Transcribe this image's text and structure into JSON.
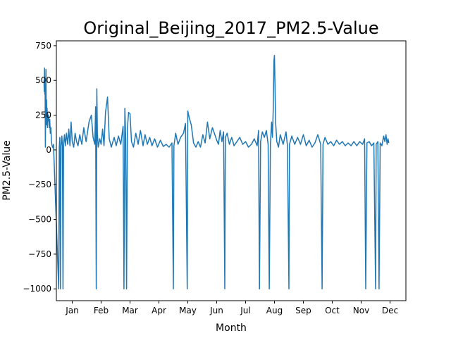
{
  "chart_data": {
    "type": "line",
    "title": "Original_Beijing_2017_PM2.5-Value",
    "xlabel": "Month",
    "ylabel": "PM2.5-Value",
    "xlim": [
      -0.55,
      11.55
    ],
    "ylim": [
      -1085,
      785
    ],
    "grid": false,
    "line_color": "#1f77b4",
    "x_ticks": [
      {
        "value": 0,
        "label": "Jan"
      },
      {
        "value": 1,
        "label": "Feb"
      },
      {
        "value": 2,
        "label": "Mar"
      },
      {
        "value": 3,
        "label": "Apr"
      },
      {
        "value": 4,
        "label": "May"
      },
      {
        "value": 5,
        "label": "Jun"
      },
      {
        "value": 6,
        "label": "Jul"
      },
      {
        "value": 7,
        "label": "Aug"
      },
      {
        "value": 8,
        "label": "Sep"
      },
      {
        "value": 9,
        "label": "Oct"
      },
      {
        "value": 10,
        "label": "Nov"
      },
      {
        "value": 11,
        "label": "Dec"
      }
    ],
    "y_ticks": [
      {
        "value": 750,
        "label": "750"
      },
      {
        "value": 500,
        "label": "500"
      },
      {
        "value": 250,
        "label": "250"
      },
      {
        "value": 0,
        "label": "0"
      },
      {
        "value": -250,
        "label": "−250"
      },
      {
        "value": -500,
        "label": "−500"
      },
      {
        "value": -750,
        "label": "−750"
      },
      {
        "value": -1000,
        "label": "−1000"
      }
    ],
    "series": [
      {
        "values": [
          [
            -0.98,
            500
          ],
          [
            -0.97,
            420
          ],
          [
            -0.96,
            590
          ],
          [
            -0.95,
            400
          ],
          [
            -0.94,
            460
          ],
          [
            -0.93,
            20
          ],
          [
            -0.92,
            350
          ],
          [
            -0.91,
            580
          ],
          [
            -0.9,
            180
          ],
          [
            -0.89,
            360
          ],
          [
            -0.88,
            220
          ],
          [
            -0.87,
            300
          ],
          [
            -0.86,
            160
          ],
          [
            -0.85,
            260
          ],
          [
            -0.84,
            210
          ],
          [
            -0.82,
            250
          ],
          [
            -0.8,
            160
          ],
          [
            -0.78,
            220
          ],
          [
            -0.76,
            120
          ],
          [
            -0.74,
            160
          ],
          [
            -0.72,
            60
          ],
          [
            -0.7,
            30
          ],
          [
            -0.67,
            15
          ],
          [
            -0.65,
            40
          ],
          [
            -0.47,
            -1000
          ],
          [
            -0.45,
            20
          ],
          [
            -0.43,
            90
          ],
          [
            -0.41,
            -1000
          ],
          [
            -0.39,
            30
          ],
          [
            -0.36,
            100
          ],
          [
            -0.34,
            25
          ],
          [
            -0.32,
            -1000
          ],
          [
            -0.3,
            40
          ],
          [
            -0.27,
            110
          ],
          [
            -0.24,
            30
          ],
          [
            -0.2,
            120
          ],
          [
            -0.16,
            40
          ],
          [
            -0.12,
            150
          ],
          [
            -0.08,
            30
          ],
          [
            -0.04,
            200
          ],
          [
            0.0,
            60
          ],
          [
            0.05,
            20
          ],
          [
            0.1,
            120
          ],
          [
            0.15,
            60
          ],
          [
            0.2,
            30
          ],
          [
            0.26,
            110
          ],
          [
            0.33,
            40
          ],
          [
            0.4,
            160
          ],
          [
            0.48,
            60
          ],
          [
            0.58,
            200
          ],
          [
            0.66,
            250
          ],
          [
            0.72,
            90
          ],
          [
            0.78,
            40
          ],
          [
            0.81,
            310
          ],
          [
            0.83,
            -1000
          ],
          [
            0.85,
            440
          ],
          [
            0.87,
            120
          ],
          [
            0.9,
            20
          ],
          [
            0.95,
            80
          ],
          [
            1.0,
            40
          ],
          [
            1.05,
            150
          ],
          [
            1.1,
            30
          ],
          [
            1.15,
            270
          ],
          [
            1.22,
            380
          ],
          [
            1.28,
            80
          ],
          [
            1.35,
            20
          ],
          [
            1.45,
            90
          ],
          [
            1.52,
            30
          ],
          [
            1.6,
            100
          ],
          [
            1.68,
            40
          ],
          [
            1.76,
            170
          ],
          [
            1.79,
            -1000
          ],
          [
            1.82,
            300
          ],
          [
            1.85,
            80
          ],
          [
            1.88,
            -1000
          ],
          [
            1.91,
            160
          ],
          [
            1.95,
            270
          ],
          [
            2.0,
            260
          ],
          [
            2.05,
            60
          ],
          [
            2.12,
            20
          ],
          [
            2.2,
            120
          ],
          [
            2.28,
            40
          ],
          [
            2.36,
            140
          ],
          [
            2.45,
            30
          ],
          [
            2.52,
            110
          ],
          [
            2.6,
            40
          ],
          [
            2.68,
            90
          ],
          [
            2.76,
            30
          ],
          [
            2.85,
            80
          ],
          [
            2.95,
            20
          ],
          [
            3.05,
            70
          ],
          [
            3.15,
            25
          ],
          [
            3.25,
            40
          ],
          [
            3.35,
            20
          ],
          [
            3.45,
            50
          ],
          [
            3.5,
            -1000
          ],
          [
            3.52,
            30
          ],
          [
            3.58,
            120
          ],
          [
            3.66,
            40
          ],
          [
            3.75,
            90
          ],
          [
            3.85,
            120
          ],
          [
            3.92,
            190
          ],
          [
            3.98,
            -1000
          ],
          [
            4.0,
            280
          ],
          [
            4.05,
            230
          ],
          [
            4.12,
            180
          ],
          [
            4.2,
            50
          ],
          [
            4.28,
            20
          ],
          [
            4.36,
            60
          ],
          [
            4.44,
            20
          ],
          [
            4.52,
            110
          ],
          [
            4.6,
            50
          ],
          [
            4.68,
            200
          ],
          [
            4.76,
            80
          ],
          [
            4.85,
            160
          ],
          [
            4.92,
            120
          ],
          [
            5.0,
            70
          ],
          [
            5.06,
            40
          ],
          [
            5.12,
            140
          ],
          [
            5.18,
            60
          ],
          [
            5.24,
            130
          ],
          [
            5.28,
            -1000
          ],
          [
            5.3,
            90
          ],
          [
            5.36,
            120
          ],
          [
            5.44,
            40
          ],
          [
            5.52,
            90
          ],
          [
            5.6,
            30
          ],
          [
            5.7,
            60
          ],
          [
            5.8,
            90
          ],
          [
            5.9,
            40
          ],
          [
            6.0,
            60
          ],
          [
            6.1,
            20
          ],
          [
            6.2,
            40
          ],
          [
            6.3,
            80
          ],
          [
            6.4,
            30
          ],
          [
            6.45,
            140
          ],
          [
            6.48,
            -1000
          ],
          [
            6.52,
            60
          ],
          [
            6.58,
            130
          ],
          [
            6.65,
            90
          ],
          [
            6.72,
            140
          ],
          [
            6.78,
            40
          ],
          [
            6.82,
            -1000
          ],
          [
            6.86,
            40
          ],
          [
            6.9,
            200
          ],
          [
            6.93,
            90
          ],
          [
            6.96,
            300
          ],
          [
            6.98,
            640
          ],
          [
            7.0,
            680
          ],
          [
            7.02,
            450
          ],
          [
            7.04,
            200
          ],
          [
            7.08,
            60
          ],
          [
            7.14,
            20
          ],
          [
            7.2,
            110
          ],
          [
            7.3,
            40
          ],
          [
            7.4,
            130
          ],
          [
            7.45,
            30
          ],
          [
            7.5,
            -1000
          ],
          [
            7.52,
            40
          ],
          [
            7.6,
            100
          ],
          [
            7.7,
            40
          ],
          [
            7.8,
            90
          ],
          [
            7.9,
            40
          ],
          [
            8.0,
            110
          ],
          [
            8.1,
            30
          ],
          [
            8.2,
            70
          ],
          [
            8.3,
            20
          ],
          [
            8.4,
            50
          ],
          [
            8.5,
            110
          ],
          [
            8.6,
            40
          ],
          [
            8.65,
            -1000
          ],
          [
            8.68,
            40
          ],
          [
            8.75,
            90
          ],
          [
            8.85,
            40
          ],
          [
            8.95,
            60
          ],
          [
            9.05,
            30
          ],
          [
            9.15,
            70
          ],
          [
            9.25,
            40
          ],
          [
            9.35,
            60
          ],
          [
            9.45,
            30
          ],
          [
            9.55,
            50
          ],
          [
            9.65,
            30
          ],
          [
            9.75,
            60
          ],
          [
            9.85,
            30
          ],
          [
            9.95,
            60
          ],
          [
            10.05,
            40
          ],
          [
            10.12,
            80
          ],
          [
            10.16,
            -1000
          ],
          [
            10.2,
            50
          ],
          [
            10.28,
            60
          ],
          [
            10.36,
            30
          ],
          [
            10.44,
            50
          ],
          [
            10.5,
            -1000
          ],
          [
            10.52,
            40
          ],
          [
            10.58,
            60
          ],
          [
            10.62,
            -1000
          ],
          [
            10.66,
            50
          ],
          [
            10.72,
            30
          ],
          [
            10.78,
            100
          ],
          [
            10.82,
            60
          ],
          [
            10.86,
            110
          ],
          [
            10.9,
            40
          ],
          [
            10.93,
            80
          ],
          [
            10.96,
            50
          ]
        ]
      }
    ]
  }
}
